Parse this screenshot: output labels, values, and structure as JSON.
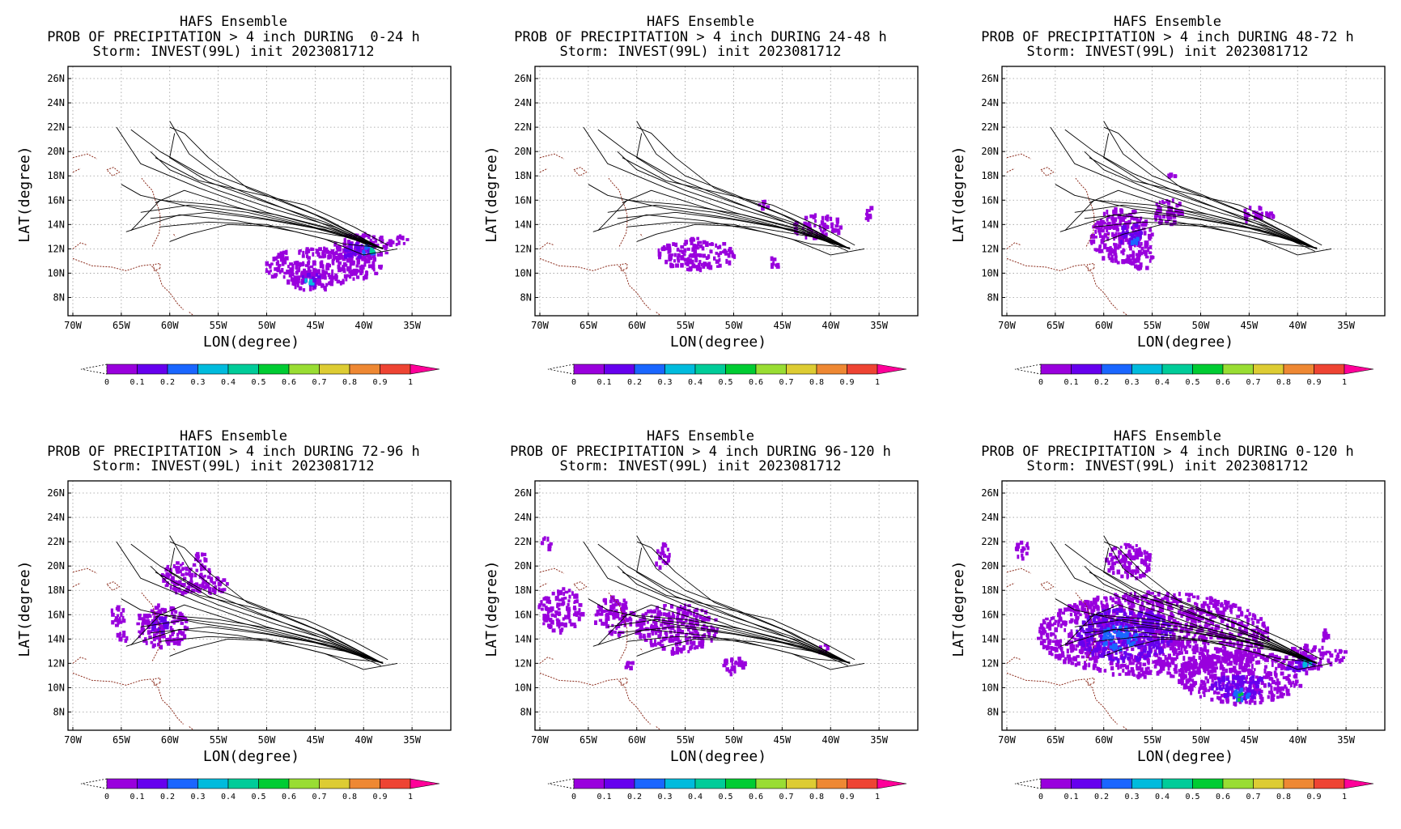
{
  "colors": {
    "scale": [
      "#9900dd",
      "#6600ee",
      "#1a66ff",
      "#00bbdd",
      "#00cc99",
      "#00cc33",
      "#99dd33",
      "#ddcc33",
      "#ee8833",
      "#ee4433"
    ],
    "over": "#ff0099",
    "track": "#000000",
    "coast": "#8b2b1b"
  },
  "common": {
    "xlabel": "LON(degree)",
    "ylabel": "LAT(degree)",
    "lon_ticks": [
      "70W",
      "65W",
      "60W",
      "55W",
      "50W",
      "45W",
      "40W",
      "35W"
    ],
    "lat_ticks": [
      "26N",
      "24N",
      "22N",
      "20N",
      "18N",
      "16N",
      "14N",
      "12N",
      "10N",
      "8N"
    ],
    "colorbar_labels": [
      "0",
      "0.1",
      "0.2",
      "0.3",
      "0.4",
      "0.5",
      "0.6",
      "0.7",
      "0.8",
      "0.9",
      "1"
    ]
  },
  "panels": [
    {
      "title1": "HAFS Ensemble",
      "title2": "PROB OF PRECIPITATION > 4 inch DURING  0-24 h",
      "title3": "Storm: INVEST(99L) init 2023081712",
      "blobs": [
        {
          "lon": -44.5,
          "lat": 10.7,
          "rlon": 6.2,
          "rlat": 1.5,
          "level": 0
        },
        {
          "lon": -45.5,
          "lat": 9.5,
          "rlon": 2.2,
          "rlat": 1.0,
          "level": 0
        },
        {
          "lon": -40.3,
          "lat": 12.3,
          "rlon": 3.0,
          "rlat": 1.1,
          "level": 0
        },
        {
          "lon": -36.5,
          "lat": 12.8,
          "rlon": 1.0,
          "rlat": 0.5,
          "level": 0
        },
        {
          "lon": -41.0,
          "lat": 12.0,
          "rlon": 1.5,
          "rlat": 0.6,
          "level": 1
        },
        {
          "lon": -45.5,
          "lat": 9.6,
          "rlon": 1.0,
          "rlat": 0.5,
          "level": 1
        },
        {
          "lon": -39.5,
          "lat": 12.1,
          "rlon": 0.9,
          "rlat": 0.4,
          "level": 2
        },
        {
          "lon": -45.8,
          "lat": 9.4,
          "rlon": 0.5,
          "rlat": 0.3,
          "level": 3
        },
        {
          "lon": -39.2,
          "lat": 12.0,
          "rlon": 0.3,
          "rlat": 0.3,
          "level": 4
        }
      ]
    },
    {
      "title1": "HAFS Ensemble",
      "title2": "PROB OF PRECIPITATION > 4 inch DURING 24-48 h",
      "title3": "Storm: INVEST(99L) init 2023081712",
      "blobs": [
        {
          "lon": -54.0,
          "lat": 11.7,
          "rlon": 4.0,
          "rlat": 1.3,
          "level": 0
        },
        {
          "lon": -41.5,
          "lat": 14.0,
          "rlon": 2.5,
          "rlat": 1.0,
          "level": 0
        },
        {
          "lon": -36.2,
          "lat": 15.0,
          "rlon": 0.6,
          "rlat": 0.6,
          "level": 0
        },
        {
          "lon": -47.0,
          "lat": 15.8,
          "rlon": 0.5,
          "rlat": 0.4,
          "level": 0
        },
        {
          "lon": -46.0,
          "lat": 11.0,
          "rlon": 0.6,
          "rlat": 0.5,
          "level": 0
        }
      ]
    },
    {
      "title1": "HAFS Ensemble",
      "title2": "PROB OF PRECIPITATION > 4 inch DURING 48-72 h",
      "title3": "Storm: INVEST(99L) init 2023081712",
      "blobs": [
        {
          "lon": -58.2,
          "lat": 13.2,
          "rlon": 3.3,
          "rlat": 2.3,
          "level": 0
        },
        {
          "lon": -56.0,
          "lat": 11.2,
          "rlon": 1.2,
          "rlat": 0.8,
          "level": 0
        },
        {
          "lon": -53.5,
          "lat": 15.2,
          "rlon": 1.5,
          "rlat": 1.2,
          "level": 0
        },
        {
          "lon": -44.5,
          "lat": 15.0,
          "rlon": 2.0,
          "rlat": 0.6,
          "level": 0
        },
        {
          "lon": -53.0,
          "lat": 18.3,
          "rlon": 0.5,
          "rlat": 0.5,
          "level": 0
        },
        {
          "lon": -57.3,
          "lat": 13.3,
          "rlon": 1.3,
          "rlat": 0.9,
          "level": 1
        },
        {
          "lon": -56.8,
          "lat": 12.6,
          "rlon": 0.5,
          "rlat": 0.4,
          "level": 2
        }
      ]
    },
    {
      "title1": "HAFS Ensemble",
      "title2": "PROB OF PRECIPITATION > 4 inch DURING 72-96 h",
      "title3": "Storm: INVEST(99L) init 2023081712",
      "blobs": [
        {
          "lon": -61.0,
          "lat": 15.2,
          "rlon": 2.7,
          "rlat": 1.8,
          "level": 0
        },
        {
          "lon": -58.5,
          "lat": 19.2,
          "rlon": 2.8,
          "rlat": 1.3,
          "level": 0
        },
        {
          "lon": -55.5,
          "lat": 18.5,
          "rlon": 1.5,
          "rlat": 0.7,
          "level": 0
        },
        {
          "lon": -65.5,
          "lat": 16.0,
          "rlon": 0.8,
          "rlat": 0.8,
          "level": 0
        },
        {
          "lon": -65.0,
          "lat": 14.3,
          "rlon": 0.6,
          "rlat": 0.5,
          "level": 0
        },
        {
          "lon": -57.0,
          "lat": 21.0,
          "rlon": 0.7,
          "rlat": 0.5,
          "level": 0
        },
        {
          "lon": -61.0,
          "lat": 15.3,
          "rlon": 1.0,
          "rlat": 0.7,
          "level": 1
        }
      ]
    },
    {
      "title1": "HAFS Ensemble",
      "title2": "PROB OF PRECIPITATION > 4 inch DURING 96-120 h",
      "title3": "Storm: INVEST(99L) init 2023081712",
      "blobs": [
        {
          "lon": -68.0,
          "lat": 16.5,
          "rlon": 2.3,
          "rlat": 1.8,
          "level": 0
        },
        {
          "lon": -62.5,
          "lat": 16.0,
          "rlon": 2.0,
          "rlat": 1.6,
          "level": 0
        },
        {
          "lon": -56.0,
          "lat": 15.0,
          "rlon": 4.3,
          "rlat": 2.0,
          "level": 0
        },
        {
          "lon": -57.5,
          "lat": 21.0,
          "rlon": 0.8,
          "rlat": 1.0,
          "level": 0
        },
        {
          "lon": -50.0,
          "lat": 12.0,
          "rlon": 1.2,
          "rlat": 0.8,
          "level": 0
        },
        {
          "lon": -69.5,
          "lat": 22.0,
          "rlon": 0.5,
          "rlat": 0.5,
          "level": 0
        },
        {
          "lon": -61.0,
          "lat": 12.0,
          "rlon": 0.5,
          "rlat": 0.5,
          "level": 0
        },
        {
          "lon": -41.0,
          "lat": 13.5,
          "rlon": 0.6,
          "rlat": 0.5,
          "level": 0
        }
      ]
    },
    {
      "title1": "HAFS Ensemble",
      "title2": "PROB OF PRECIPITATION > 4 inch DURING 0-120 h",
      "title3": "Storm: INVEST(99L) init 2023081712",
      "blobs": [
        {
          "lon": -55.0,
          "lat": 14.5,
          "rlon": 12.0,
          "rlat": 3.5,
          "level": 0
        },
        {
          "lon": -46.0,
          "lat": 11.0,
          "rlon": 6.5,
          "rlat": 2.2,
          "level": 0
        },
        {
          "lon": -57.5,
          "lat": 20.5,
          "rlon": 2.5,
          "rlat": 1.5,
          "level": 0
        },
        {
          "lon": -39.0,
          "lat": 12.5,
          "rlon": 2.5,
          "rlat": 1.2,
          "level": 0
        },
        {
          "lon": -35.8,
          "lat": 12.8,
          "rlon": 0.8,
          "rlat": 0.5,
          "level": 0
        },
        {
          "lon": -68.5,
          "lat": 21.5,
          "rlon": 0.7,
          "rlat": 0.8,
          "level": 0
        },
        {
          "lon": -37.5,
          "lat": 14.5,
          "rlon": 0.5,
          "rlat": 0.6,
          "level": 0
        },
        {
          "lon": -58.0,
          "lat": 14.5,
          "rlon": 5.0,
          "rlat": 2.2,
          "level": 1
        },
        {
          "lon": -46.0,
          "lat": 10.2,
          "rlon": 3.0,
          "rlat": 1.0,
          "level": 1
        },
        {
          "lon": -40.0,
          "lat": 12.1,
          "rlon": 1.5,
          "rlat": 0.6,
          "level": 1
        },
        {
          "lon": -58.5,
          "lat": 14.2,
          "rlon": 2.0,
          "rlat": 1.0,
          "level": 2
        },
        {
          "lon": -46.0,
          "lat": 9.6,
          "rlon": 1.0,
          "rlat": 0.5,
          "level": 2
        },
        {
          "lon": -39.3,
          "lat": 12.0,
          "rlon": 0.6,
          "rlat": 0.4,
          "level": 3
        },
        {
          "lon": -46.0,
          "lat": 9.4,
          "rlon": 0.4,
          "rlat": 0.3,
          "level": 5
        }
      ]
    }
  ],
  "tracks": [
    [
      [
        -38.0,
        12.0
      ],
      [
        -43.0,
        13.5
      ],
      [
        -50.0,
        15.0
      ],
      [
        -57.0,
        17.0
      ],
      [
        -63.0,
        19.0
      ],
      [
        -65.5,
        22.0
      ]
    ],
    [
      [
        -38.0,
        12.0
      ],
      [
        -44.0,
        14.0
      ],
      [
        -51.0,
        16.2
      ],
      [
        -57.0,
        18.2
      ],
      [
        -61.0,
        20.0
      ],
      [
        -64.0,
        21.8
      ]
    ],
    [
      [
        -38.0,
        12.0
      ],
      [
        -44.0,
        14.5
      ],
      [
        -50.0,
        16.5
      ],
      [
        -55.0,
        18.0
      ],
      [
        -58.0,
        19.8
      ],
      [
        -60.0,
        22.5
      ]
    ],
    [
      [
        -38.0,
        12.0
      ],
      [
        -44.0,
        14.2
      ],
      [
        -50.0,
        15.8
      ],
      [
        -56.0,
        17.5
      ],
      [
        -60.0,
        19.5
      ],
      [
        -59.5,
        21.5
      ]
    ],
    [
      [
        -38.0,
        12.0
      ],
      [
        -43.0,
        13.6
      ],
      [
        -49.0,
        14.8
      ],
      [
        -55.0,
        15.6
      ],
      [
        -61.0,
        16.0
      ],
      [
        -64.0,
        13.5
      ]
    ],
    [
      [
        -38.0,
        12.0
      ],
      [
        -43.0,
        13.4
      ],
      [
        -50.0,
        14.4
      ],
      [
        -56.0,
        15.0
      ],
      [
        -62.0,
        14.5
      ]
    ],
    [
      [
        -38.0,
        12.0
      ],
      [
        -44.0,
        13.6
      ],
      [
        -51.0,
        14.6
      ],
      [
        -57.0,
        15.3
      ],
      [
        -63.0,
        16.4
      ],
      [
        -65.0,
        17.3
      ]
    ],
    [
      [
        -38.0,
        12.0
      ],
      [
        -42.0,
        13.0
      ],
      [
        -48.0,
        13.8
      ],
      [
        -54.0,
        14.0
      ],
      [
        -58.0,
        13.2
      ],
      [
        -60.0,
        12.6
      ]
    ],
    [
      [
        -38.0,
        12.0
      ],
      [
        -43.0,
        13.8
      ],
      [
        -49.0,
        15.2
      ],
      [
        -55.0,
        16.8
      ],
      [
        -60.0,
        18.5
      ],
      [
        -62.0,
        20.0
      ]
    ],
    [
      [
        -38.0,
        12.0
      ],
      [
        -42.5,
        13.2
      ],
      [
        -47.0,
        14.2
      ],
      [
        -53.0,
        15.4
      ],
      [
        -58.5,
        16.8
      ],
      [
        -61.5,
        15.8
      ]
    ],
    [
      [
        -36.5,
        12.0
      ],
      [
        -40.0,
        11.5
      ],
      [
        -44.0,
        12.8
      ],
      [
        -50.0,
        14.0
      ],
      [
        -56.0,
        14.2
      ],
      [
        -61.0,
        13.8
      ]
    ],
    [
      [
        -37.5,
        12.3
      ],
      [
        -41.0,
        13.8
      ],
      [
        -46.0,
        15.6
      ],
      [
        -52.0,
        16.7
      ],
      [
        -57.0,
        17.6
      ],
      [
        -61.5,
        19.5
      ]
    ],
    [
      [
        -38.0,
        12.0
      ],
      [
        -45.0,
        14.8
      ],
      [
        -52.0,
        17.0
      ],
      [
        -56.0,
        19.5
      ],
      [
        -58.5,
        21.5
      ],
      [
        -60.0,
        22.0
      ]
    ],
    [
      [
        -38.2,
        11.8
      ],
      [
        -41.0,
        12.8
      ],
      [
        -46.0,
        13.9
      ],
      [
        -52.0,
        15.0
      ],
      [
        -58.0,
        15.6
      ],
      [
        -63.0,
        15.0
      ]
    ],
    [
      [
        -38.0,
        12.1
      ],
      [
        -42.0,
        12.4
      ],
      [
        -47.0,
        13.4
      ],
      [
        -53.0,
        14.3
      ],
      [
        -59.0,
        14.8
      ],
      [
        -64.5,
        13.4
      ]
    ]
  ],
  "coast_segments": [
    [
      [
        -70.0,
        19.5
      ],
      [
        -68.5,
        19.8
      ],
      [
        -67.5,
        19.4
      ]
    ],
    [
      [
        -70.0,
        18.3
      ],
      [
        -69.2,
        18.6
      ]
    ],
    [
      [
        -66.5,
        18.5
      ],
      [
        -65.8,
        18.7
      ],
      [
        -65.2,
        18.3
      ],
      [
        -65.9,
        18.0
      ],
      [
        -66.5,
        18.5
      ]
    ],
    [
      [
        -70.0,
        12.0
      ],
      [
        -69.2,
        12.5
      ],
      [
        -68.5,
        12.3
      ]
    ],
    [
      [
        -70.0,
        11.2
      ],
      [
        -68.0,
        10.6
      ],
      [
        -66.0,
        10.5
      ],
      [
        -64.5,
        10.2
      ],
      [
        -63.0,
        10.6
      ],
      [
        -62.0,
        10.7
      ],
      [
        -61.2,
        10.0
      ],
      [
        -60.8,
        9.0
      ],
      [
        -60.0,
        8.4
      ],
      [
        -59.2,
        7.5
      ],
      [
        -58.6,
        7.0
      ]
    ],
    [
      [
        -61.8,
        12.2
      ],
      [
        -61.4,
        12.8
      ],
      [
        -61.1,
        13.3
      ],
      [
        -61.0,
        14.0
      ],
      [
        -61.0,
        14.8
      ],
      [
        -61.2,
        15.4
      ],
      [
        -61.5,
        16.0
      ],
      [
        -61.8,
        16.8
      ],
      [
        -62.4,
        17.3
      ],
      [
        -62.9,
        17.8
      ]
    ],
    [
      [
        -59.6,
        13.2
      ],
      [
        -59.4,
        13.0
      ]
    ],
    [
      [
        -61.0,
        10.4
      ],
      [
        -61.6,
        10.2
      ],
      [
        -61.7,
        10.7
      ],
      [
        -61.0,
        10.8
      ],
      [
        -61.0,
        10.4
      ]
    ],
    [
      [
        -58.0,
        6.8
      ],
      [
        -57.2,
        6.3
      ]
    ]
  ]
}
